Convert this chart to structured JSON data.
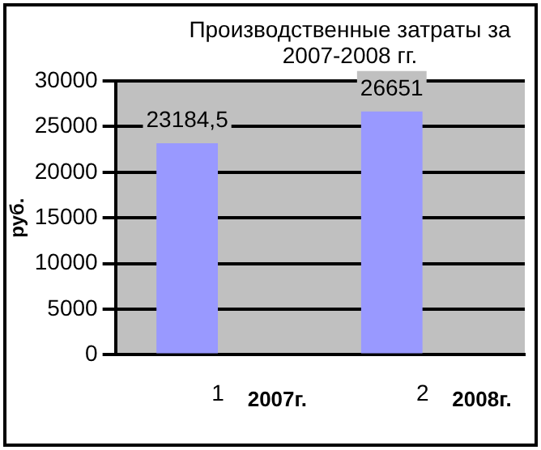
{
  "chart_data": {
    "type": "bar",
    "title": "Производственные затраты за 2007-2008 гг.",
    "ylabel": "руб.",
    "categories": [
      "1",
      "2"
    ],
    "series": [
      {
        "color": "#9999ff",
        "values": [
          23184.5,
          26651
        ],
        "value_labels": [
          "23184,5",
          "26651"
        ]
      },
      {
        "color": "#000000",
        "values": [
          100,
          null
        ]
      }
    ],
    "ylim": [
      0,
      30000
    ],
    "yticks": [
      0,
      5000,
      10000,
      15000,
      20000,
      25000,
      30000
    ],
    "grid": "y",
    "legend": false,
    "annotations": [
      "2007г.",
      "2008г."
    ]
  }
}
